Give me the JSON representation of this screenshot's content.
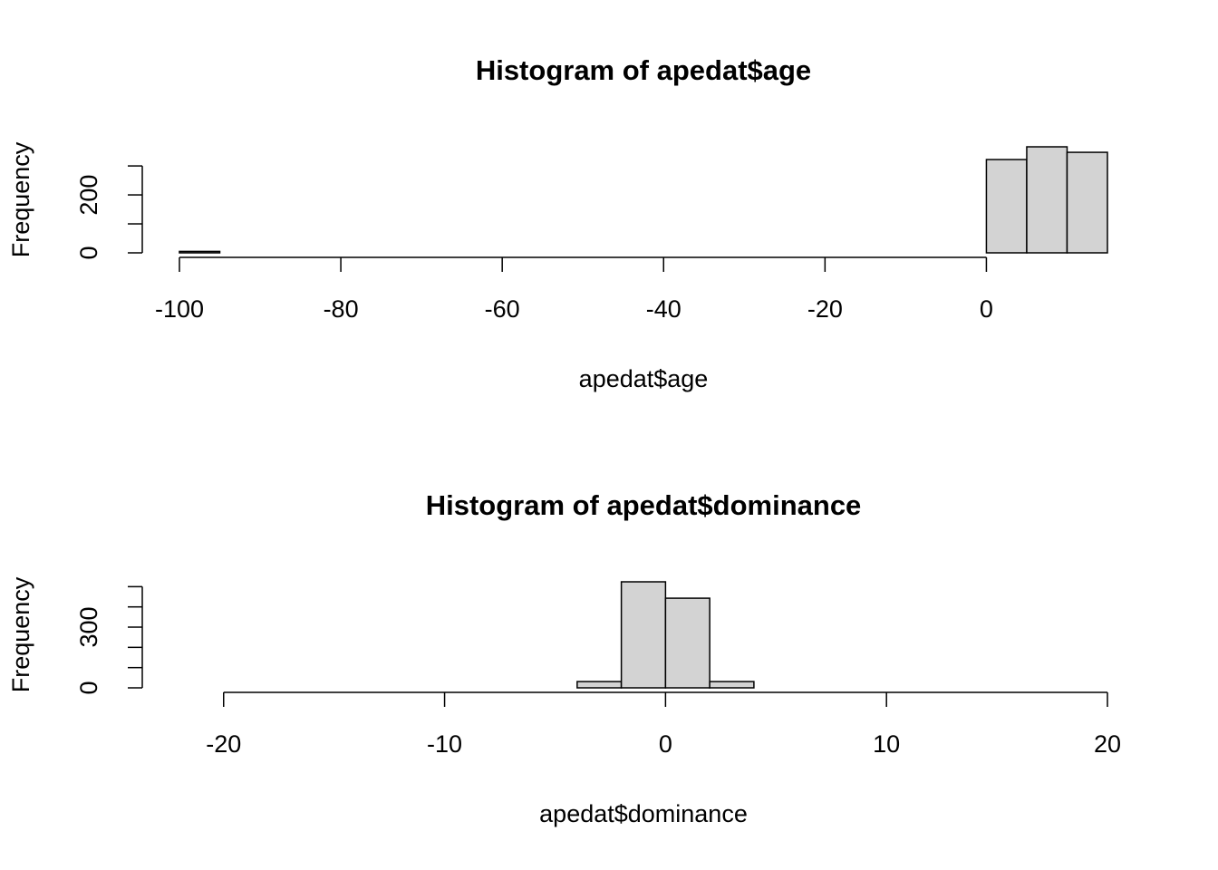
{
  "chart_data": [
    {
      "type": "histogram",
      "title": "Histogram of apedat$age",
      "x_label": "apedat$age",
      "y_label": "Frequency",
      "bins": [
        -100,
        -95,
        -90,
        -85,
        -80,
        -75,
        -70,
        -65,
        -60,
        -55,
        -50,
        -45,
        -40,
        -35,
        -30,
        -25,
        -20,
        -15,
        -10,
        -5,
        0,
        5,
        10,
        15
      ],
      "counts": [
        5,
        0,
        0,
        0,
        0,
        0,
        0,
        0,
        0,
        0,
        0,
        0,
        0,
        0,
        0,
        0,
        0,
        0,
        0,
        0,
        322,
        366,
        347
      ],
      "color": "#d3d3d3",
      "xlim": [
        -100,
        15
      ],
      "xticks": [
        -100,
        -80,
        -60,
        -40,
        -20,
        0
      ],
      "ylim": [
        0,
        366
      ],
      "yticks": [
        0,
        {
          "value": 100,
          "label": null
        },
        200,
        {
          "value": 300,
          "label": null
        }
      ]
    },
    {
      "type": "histogram",
      "title": "Histogram of apedat$dominance",
      "x_label": "apedat$dominance",
      "y_label": "Frequency",
      "bins": [
        -22,
        -20,
        -18,
        -16,
        -14,
        -12,
        -10,
        -8,
        -6,
        -4,
        -2,
        0,
        2,
        4,
        6,
        8,
        10,
        12,
        14,
        16,
        18,
        20
      ],
      "counts": [
        0,
        0,
        0,
        0,
        0,
        0,
        0,
        0,
        0,
        31,
        524,
        443,
        31,
        0,
        0,
        0,
        0,
        0,
        0,
        0,
        0
      ],
      "color": "#d3d3d3",
      "xlim": [
        -22,
        20
      ],
      "xticks": [
        -20,
        -10,
        0,
        10,
        20
      ],
      "ylim": [
        0,
        524
      ],
      "yticks": [
        0,
        {
          "value": 100,
          "label": null
        },
        {
          "value": 200,
          "label": null
        },
        300,
        {
          "value": 400,
          "label": null
        },
        {
          "value": 500,
          "label": null
        }
      ]
    }
  ]
}
